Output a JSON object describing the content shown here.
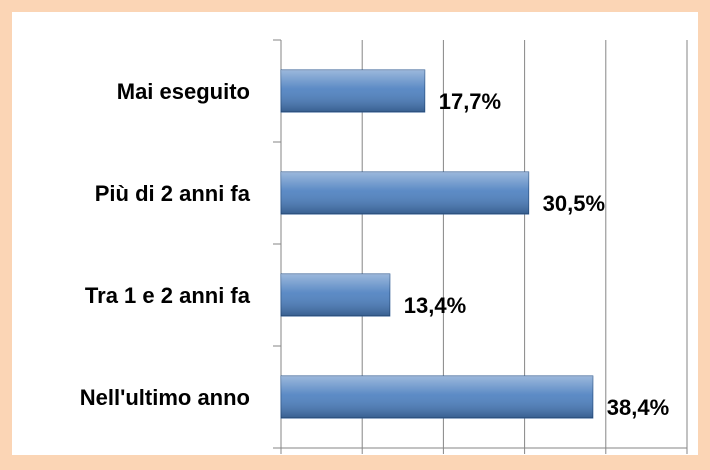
{
  "chart_data": {
    "type": "hbar",
    "categories": [
      "Mai eseguito",
      "Più di 2 anni fa",
      "Tra 1 e 2 anni fa",
      "Nell'ultimo anno"
    ],
    "values": [
      17.7,
      30.5,
      13.4,
      38.4
    ],
    "value_labels": [
      "17,7%",
      "30,5%",
      "13,4%",
      "38,4%"
    ],
    "color": "#4a7ebf",
    "xlim": [
      0,
      50
    ],
    "xticks": [
      0,
      10,
      20,
      30,
      40,
      50
    ],
    "grid": true
  }
}
